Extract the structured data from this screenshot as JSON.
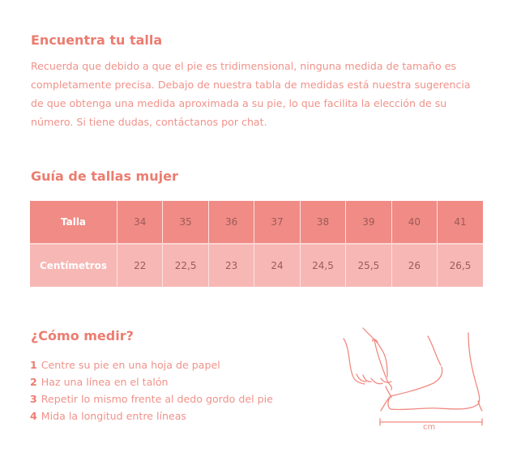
{
  "intro": {
    "title": "Encuentra tu talla",
    "text": "Recuerda que debido a que el pie es tridimensional, ninguna medida de tamaño es completamente precisa. Debajo de nuestra tabla de medidas está nuestra sugerencia de que obtenga una medida aproximada a su pie, lo que facilita la elección de su número. Si tiene dudas, contáctanos por chat."
  },
  "guide": {
    "title": "Guía de tallas mujer",
    "rows": [
      {
        "label": "Talla",
        "values": [
          "34",
          "35",
          "36",
          "37",
          "38",
          "39",
          "40",
          "41"
        ]
      },
      {
        "label": "Centímetros",
        "values": [
          "22",
          "22,5",
          "23",
          "24",
          "24,5",
          "25,5",
          "26",
          "26,5"
        ]
      }
    ]
  },
  "measure": {
    "title": "¿Cómo medir?",
    "steps": [
      {
        "n": "1",
        "text": "Centre su pie en una hoja de papel"
      },
      {
        "n": "2",
        "text": "Haz una línea en el talón"
      },
      {
        "n": "3",
        "text": "Repetir lo mismo frente al dedo gordo del pie"
      },
      {
        "n": "4",
        "text": "Mida la longitud entre líneas"
      }
    ],
    "unit": "cm"
  },
  "colors": {
    "heading": "#ec7c70",
    "header_row": "#f08b85",
    "data_row": "#f6b7b5"
  }
}
